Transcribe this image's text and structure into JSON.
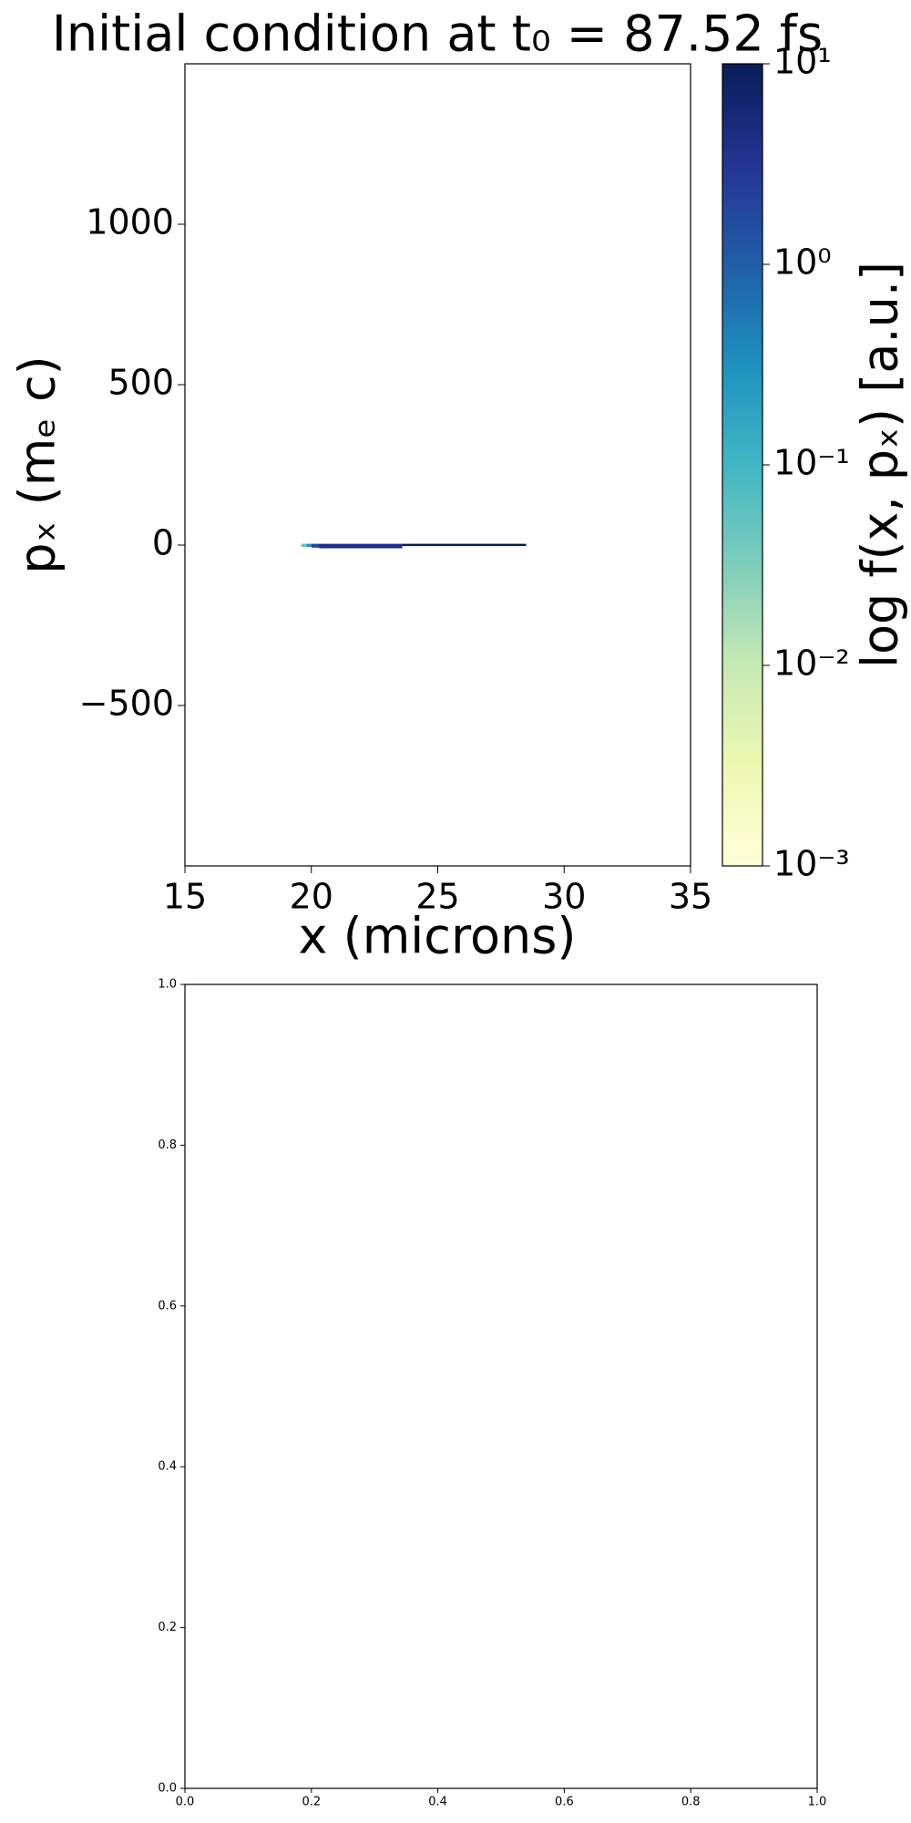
{
  "chart_data": [
    {
      "type": "heatmap",
      "title": "Initial condition at t₀ = 87.52 fs",
      "xlabel": "x (microns)",
      "ylabel": "pₓ (mₑ c)",
      "xlim": [
        15,
        35
      ],
      "xticks": [
        15,
        20,
        25,
        30,
        35
      ],
      "ylim": [
        -1000,
        1500
      ],
      "yticks": [
        {
          "value": -500,
          "label": "−500"
        },
        0,
        500,
        1000
      ],
      "cells": [
        {
          "x": [
            19.6,
            19.8
          ],
          "y": [
            -6,
            4
          ],
          "value": 0.05
        },
        {
          "x": [
            19.8,
            20.0
          ],
          "y": [
            -6,
            4
          ],
          "value": 0.3
        },
        {
          "x": [
            20.0,
            20.3
          ],
          "y": [
            -8,
            4
          ],
          "value": 2
        },
        {
          "x": [
            20.3,
            23.6
          ],
          "y": [
            -10,
            4
          ],
          "value": 4
        },
        {
          "x": [
            23.6,
            28.5
          ],
          "y": [
            -3,
            4
          ],
          "value": 10
        }
      ],
      "colorbar": {
        "label": "log f(x, pₓ) [a.u.]",
        "log": true,
        "lim": [
          0.001,
          10
        ],
        "ticks": [
          {
            "value": 0.001,
            "label": "10⁻³"
          },
          {
            "value": 0.01,
            "label": "10⁻²"
          },
          {
            "value": 0.1,
            "label": "10⁻¹"
          },
          {
            "value": 1,
            "label": "10⁰"
          },
          {
            "value": 10,
            "label": "10¹"
          }
        ],
        "colormap": [
          "#ffffd9",
          "#edf8b1",
          "#c7e9b4",
          "#7fcdbb",
          "#41b6c4",
          "#1d91c0",
          "#225ea8",
          "#253494",
          "#081d58"
        ]
      }
    },
    {
      "type": "axes",
      "xlim": [
        0,
        1
      ],
      "ylim": [
        0,
        1
      ],
      "xticks": [
        {
          "value": 0,
          "label": "0.0"
        },
        {
          "value": 0.2,
          "label": "0.2"
        },
        {
          "value": 0.4,
          "label": "0.4"
        },
        {
          "value": 0.6,
          "label": "0.6"
        },
        {
          "value": 0.8,
          "label": "0.8"
        },
        {
          "value": 1,
          "label": "1.0"
        }
      ],
      "yticks": [
        {
          "value": 0,
          "label": "0.0"
        },
        {
          "value": 0.2,
          "label": "0.2"
        },
        {
          "value": 0.4,
          "label": "0.4"
        },
        {
          "value": 0.6,
          "label": "0.6"
        },
        {
          "value": 0.8,
          "label": "0.8"
        },
        {
          "value": 1,
          "label": "1.0"
        }
      ]
    }
  ]
}
